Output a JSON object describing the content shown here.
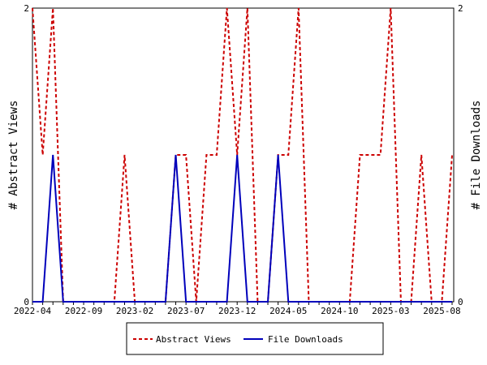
{
  "chart_data": {
    "type": "line",
    "x": [
      "2022-04",
      "2022-05",
      "2022-06",
      "2022-07",
      "2022-08",
      "2022-09",
      "2022-10",
      "2022-11",
      "2022-12",
      "2023-01",
      "2023-02",
      "2023-03",
      "2023-04",
      "2023-05",
      "2023-06",
      "2023-07",
      "2023-08",
      "2023-09",
      "2023-10",
      "2023-11",
      "2023-12",
      "2024-01",
      "2024-02",
      "2024-03",
      "2024-04",
      "2024-05",
      "2024-06",
      "2024-07",
      "2024-08",
      "2024-09",
      "2024-10",
      "2024-11",
      "2024-12",
      "2025-01",
      "2025-02",
      "2025-03",
      "2025-04",
      "2025-05",
      "2025-06",
      "2025-07",
      "2025-08",
      "2025-09"
    ],
    "xticks": [
      "2022-04",
      "2022-09",
      "2023-02",
      "2023-07",
      "2023-12",
      "2024-05",
      "2024-10",
      "2025-03",
      "2025-08"
    ],
    "series": [
      {
        "name": "Abstract Views",
        "axis": "left",
        "color": "#cc0000",
        "style": "dashed",
        "values": [
          2,
          1,
          2,
          0,
          0,
          0,
          0,
          0,
          0,
          1,
          0,
          0,
          0,
          0,
          1,
          1,
          0,
          1,
          1,
          2,
          1,
          2,
          0,
          0,
          1,
          1,
          2,
          0,
          0,
          0,
          0,
          0,
          1,
          1,
          1,
          2,
          0,
          0,
          1,
          0,
          0,
          1
        ]
      },
      {
        "name": "File Downloads",
        "axis": "right",
        "color": "#0000bb",
        "style": "solid",
        "values": [
          0,
          0,
          1,
          0,
          0,
          0,
          0,
          0,
          0,
          0,
          0,
          0,
          0,
          0,
          1,
          0,
          0,
          0,
          0,
          0,
          1,
          0,
          0,
          0,
          1,
          0,
          0,
          0,
          0,
          0,
          0,
          0,
          0,
          0,
          0,
          0,
          0,
          0,
          0,
          0,
          0,
          0
        ]
      }
    ],
    "ylabel": "# Abstract Views",
    "y2label": "# File Downloads",
    "ylim": [
      0,
      2
    ],
    "y2lim": [
      0,
      2
    ],
    "yticks": [
      "0",
      "2"
    ],
    "y2ticks": [
      "0",
      "2"
    ],
    "grid": false,
    "legend": "bottom"
  }
}
